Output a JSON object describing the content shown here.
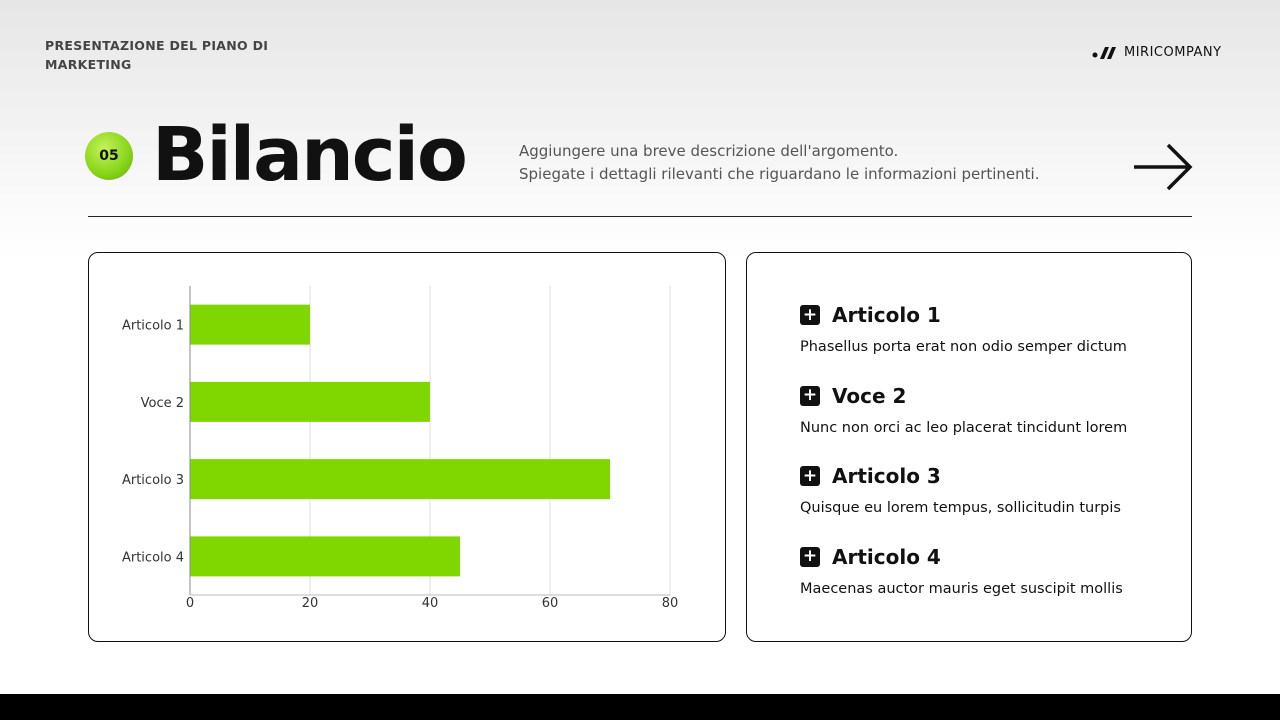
{
  "header": {
    "deck_title": "PRESENTAZIONE DEL PIANO DI MARKETING",
    "brand": "MIRICOMPANY",
    "number": "05",
    "title": "Bilancio",
    "description": [
      "Aggiungere una breve descrizione dell'argomento.",
      "Spiegate i dettagli rilevanti che riguardano le informazioni pertinenti."
    ],
    "arrow_icon": "arrow-right-icon"
  },
  "colors": {
    "accent": "#80d700",
    "footer": "#000000"
  },
  "chart_data": {
    "type": "bar",
    "orientation": "horizontal",
    "categories": [
      "Articolo 1",
      "Voce 2",
      "Articolo 3",
      "Articolo 4"
    ],
    "values": [
      20,
      40,
      70,
      45
    ],
    "xlim": [
      0,
      80
    ],
    "xticks": [
      0,
      20,
      40,
      60,
      80
    ],
    "grid": true,
    "color": "#80d700"
  },
  "items": [
    {
      "title": "Articolo 1",
      "text": "Phasellus porta erat non odio semper dictum"
    },
    {
      "title": "Voce 2",
      "text": "Nunc non orci ac leo placerat tincidunt lorem"
    },
    {
      "title": "Articolo 3",
      "text": "Quisque eu lorem tempus, sollicitudin turpis"
    },
    {
      "title": "Articolo 4",
      "text": "Maecenas auctor mauris eget suscipit mollis"
    }
  ]
}
